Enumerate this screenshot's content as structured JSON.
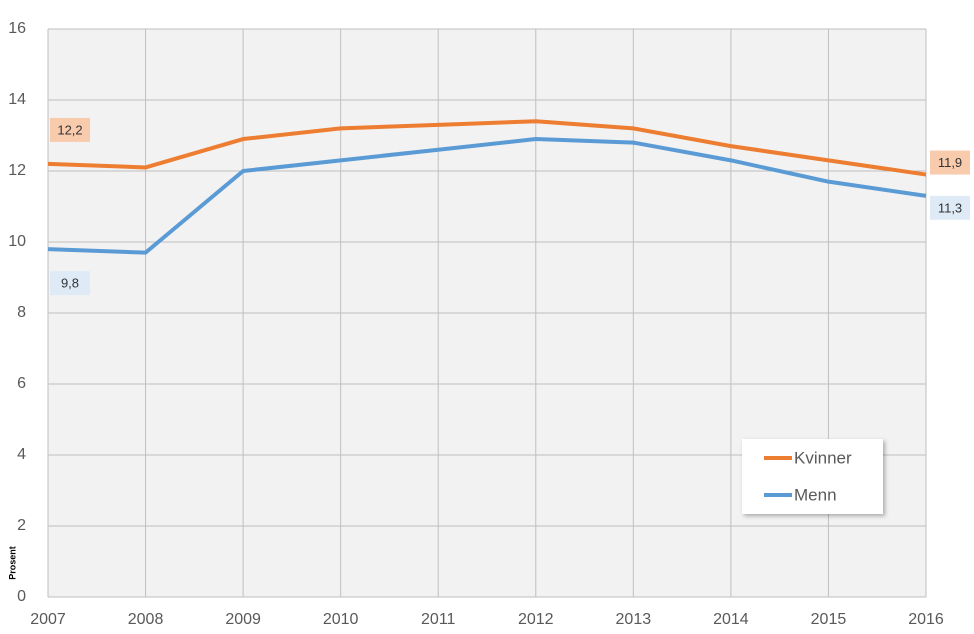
{
  "chart_data": {
    "type": "line",
    "y_label": "Prosent",
    "x": [
      2007,
      2008,
      2009,
      2010,
      2011,
      2012,
      2013,
      2014,
      2015,
      2016
    ],
    "series": [
      {
        "name": "Kvinner",
        "color": "#ed7d31",
        "values": [
          12.2,
          12.1,
          12.9,
          13.2,
          13.3,
          13.4,
          13.2,
          12.7,
          12.3,
          11.9
        ],
        "value_labels": [
          "12,2",
          null,
          null,
          null,
          null,
          null,
          null,
          null,
          null,
          "11,9"
        ],
        "label_fill": "#f8cbad"
      },
      {
        "name": "Menn",
        "color": "#5b9bd5",
        "values": [
          9.8,
          9.7,
          12.0,
          12.3,
          12.6,
          12.9,
          12.8,
          12.3,
          11.7,
          11.3
        ],
        "value_labels": [
          "9,8",
          null,
          null,
          null,
          null,
          null,
          null,
          null,
          null,
          "11,3"
        ],
        "label_fill": "#deebf7"
      }
    ],
    "xlim": [
      2007,
      2016
    ],
    "xticks": [
      2007,
      2008,
      2009,
      2010,
      2011,
      2012,
      2013,
      2014,
      2015,
      2016
    ],
    "ylim": [
      0,
      16
    ],
    "yticks": [
      0,
      2,
      4,
      6,
      8,
      10,
      12,
      14,
      16
    ],
    "grid": true,
    "legend_position": "lower right"
  }
}
